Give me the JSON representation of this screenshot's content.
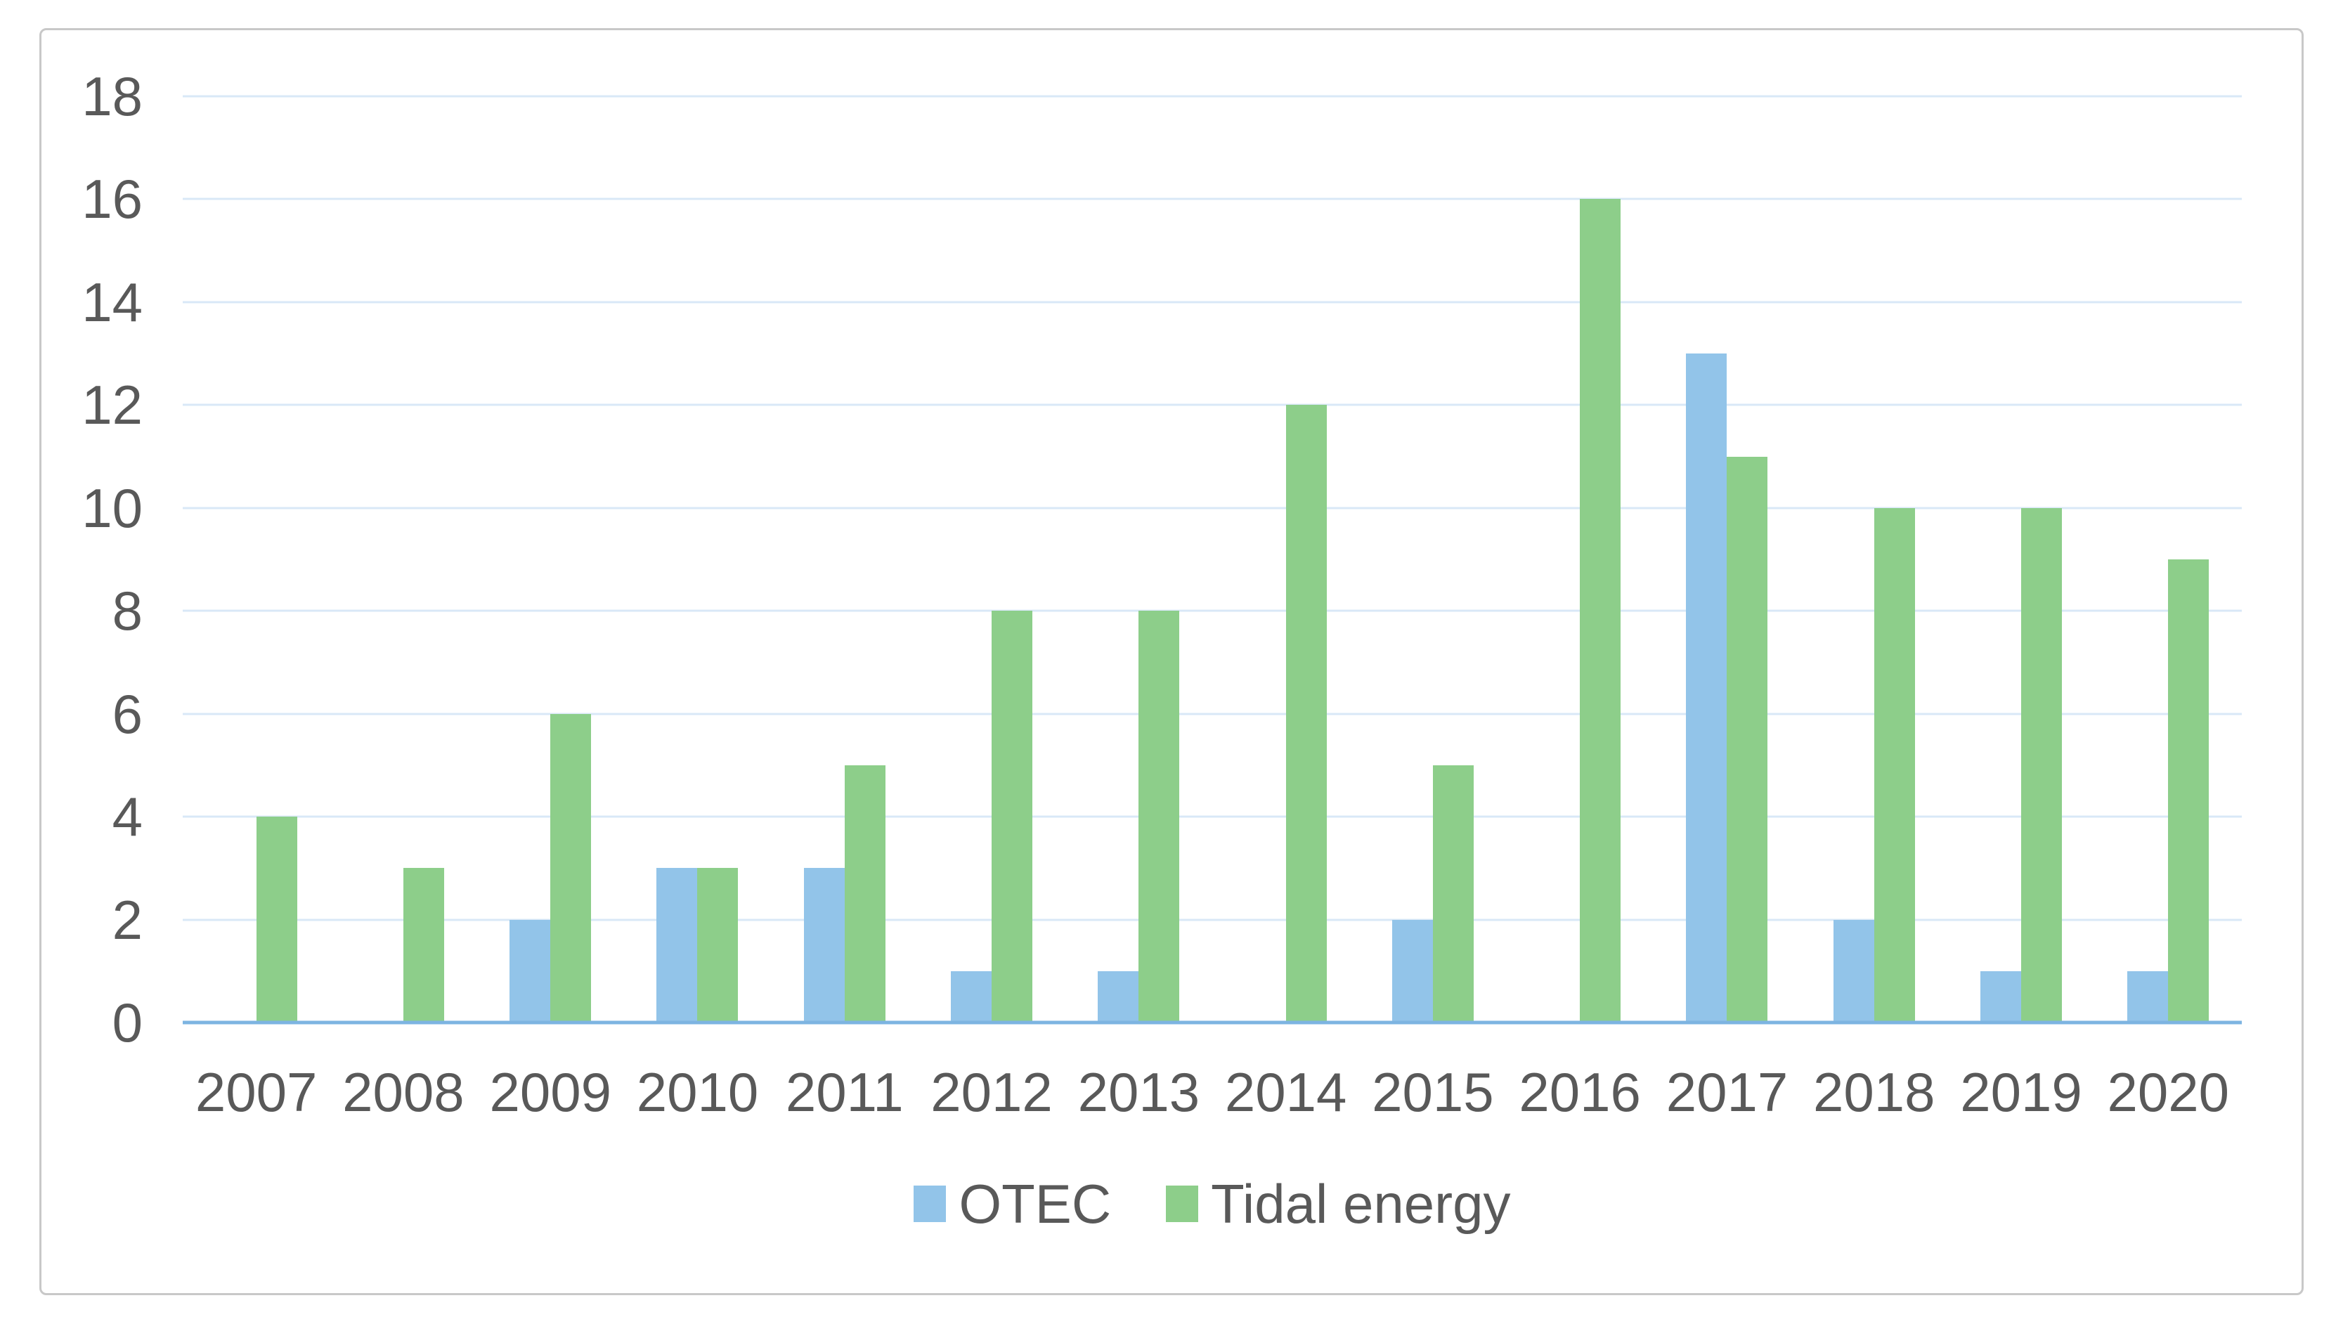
{
  "chart_data": {
    "type": "bar",
    "title": "",
    "xlabel": "",
    "ylabel": "",
    "categories": [
      "2007",
      "2008",
      "2009",
      "2010",
      "2011",
      "2012",
      "2013",
      "2014",
      "2015",
      "2016",
      "2017",
      "2018",
      "2019",
      "2020"
    ],
    "series": [
      {
        "name": "OTEC",
        "color": "#92C4E9",
        "values": [
          0,
          0,
          2,
          3,
          3,
          1,
          1,
          0,
          2,
          0,
          13,
          2,
          1,
          1
        ]
      },
      {
        "name": "Tidal energy",
        "color": "#8DCE8A",
        "values": [
          4,
          3,
          6,
          3,
          5,
          8,
          8,
          12,
          5,
          16,
          11,
          10,
          10,
          9
        ]
      }
    ],
    "ylim": [
      0,
      18
    ],
    "ytick_step": 2,
    "yticks": [
      "0",
      "2",
      "4",
      "6",
      "8",
      "10",
      "12",
      "14",
      "16",
      "18"
    ],
    "grid": true,
    "legend_position": "bottom"
  },
  "colors": {
    "background": "#FFFFFF",
    "frame_border": "#C8C8C8",
    "gridline": "#D9E8F7",
    "axis_line": "#7DB4E1",
    "text": "#595959"
  }
}
